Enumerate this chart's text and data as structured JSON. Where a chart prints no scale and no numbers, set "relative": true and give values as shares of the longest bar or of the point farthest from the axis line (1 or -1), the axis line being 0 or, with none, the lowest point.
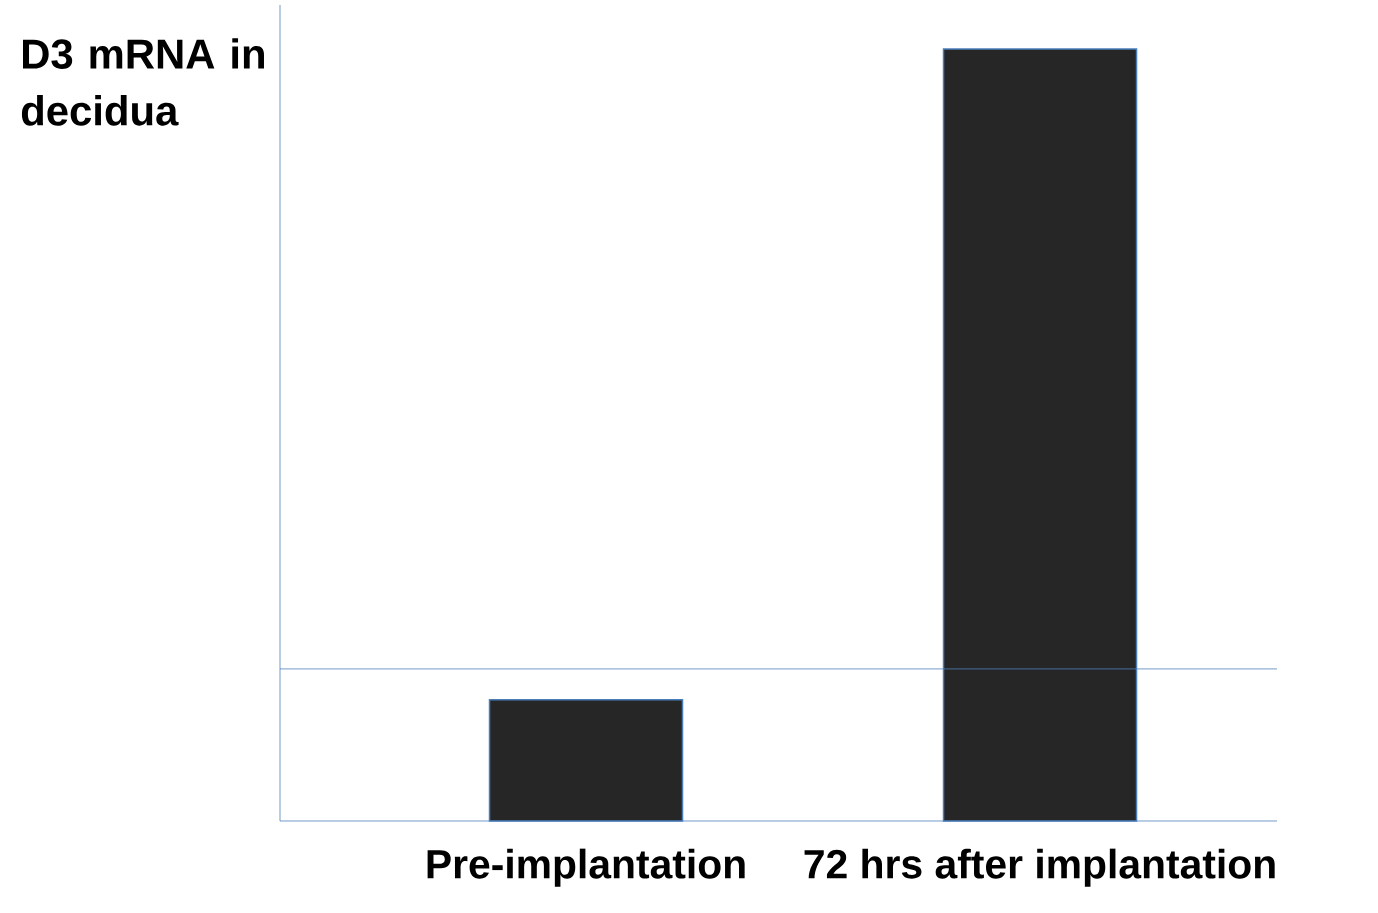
{
  "chart_data": {
    "type": "bar",
    "relative": true,
    "ylabel": "D3 mRNA in decidua",
    "categories": [
      "Pre-implantation",
      "72 hrs after implantation"
    ],
    "values": [
      0.157,
      1
    ],
    "color": "#262626",
    "ref_lines": [
      {
        "axis": "y",
        "value": 0.197,
        "color": "#4f81bd"
      }
    ]
  }
}
